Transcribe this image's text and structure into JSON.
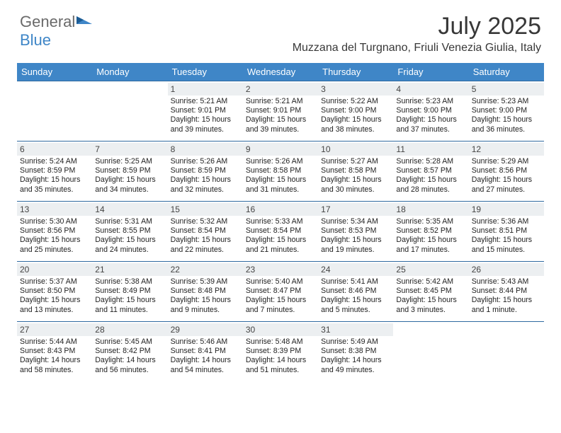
{
  "logo": {
    "line1": "General",
    "line2": "Blue"
  },
  "title": "July 2025",
  "subtitle": "Muzzana del Turgnano, Friuli Venezia Giulia, Italy",
  "colors": {
    "header_bg": "#3f86c7",
    "header_text": "#ffffff",
    "datebar_bg": "#eceff1",
    "grid_border": "#2f6aa0",
    "body_text": "#222222"
  },
  "day_names": [
    "Sunday",
    "Monday",
    "Tuesday",
    "Wednesday",
    "Thursday",
    "Friday",
    "Saturday"
  ],
  "weeks": [
    [
      null,
      null,
      {
        "d": "1",
        "sr": "5:21 AM",
        "ss": "9:01 PM",
        "dl": "15 hours and 39 minutes."
      },
      {
        "d": "2",
        "sr": "5:21 AM",
        "ss": "9:01 PM",
        "dl": "15 hours and 39 minutes."
      },
      {
        "d": "3",
        "sr": "5:22 AM",
        "ss": "9:00 PM",
        "dl": "15 hours and 38 minutes."
      },
      {
        "d": "4",
        "sr": "5:23 AM",
        "ss": "9:00 PM",
        "dl": "15 hours and 37 minutes."
      },
      {
        "d": "5",
        "sr": "5:23 AM",
        "ss": "9:00 PM",
        "dl": "15 hours and 36 minutes."
      }
    ],
    [
      {
        "d": "6",
        "sr": "5:24 AM",
        "ss": "8:59 PM",
        "dl": "15 hours and 35 minutes."
      },
      {
        "d": "7",
        "sr": "5:25 AM",
        "ss": "8:59 PM",
        "dl": "15 hours and 34 minutes."
      },
      {
        "d": "8",
        "sr": "5:26 AM",
        "ss": "8:59 PM",
        "dl": "15 hours and 32 minutes."
      },
      {
        "d": "9",
        "sr": "5:26 AM",
        "ss": "8:58 PM",
        "dl": "15 hours and 31 minutes."
      },
      {
        "d": "10",
        "sr": "5:27 AM",
        "ss": "8:58 PM",
        "dl": "15 hours and 30 minutes."
      },
      {
        "d": "11",
        "sr": "5:28 AM",
        "ss": "8:57 PM",
        "dl": "15 hours and 28 minutes."
      },
      {
        "d": "12",
        "sr": "5:29 AM",
        "ss": "8:56 PM",
        "dl": "15 hours and 27 minutes."
      }
    ],
    [
      {
        "d": "13",
        "sr": "5:30 AM",
        "ss": "8:56 PM",
        "dl": "15 hours and 25 minutes."
      },
      {
        "d": "14",
        "sr": "5:31 AM",
        "ss": "8:55 PM",
        "dl": "15 hours and 24 minutes."
      },
      {
        "d": "15",
        "sr": "5:32 AM",
        "ss": "8:54 PM",
        "dl": "15 hours and 22 minutes."
      },
      {
        "d": "16",
        "sr": "5:33 AM",
        "ss": "8:54 PM",
        "dl": "15 hours and 21 minutes."
      },
      {
        "d": "17",
        "sr": "5:34 AM",
        "ss": "8:53 PM",
        "dl": "15 hours and 19 minutes."
      },
      {
        "d": "18",
        "sr": "5:35 AM",
        "ss": "8:52 PM",
        "dl": "15 hours and 17 minutes."
      },
      {
        "d": "19",
        "sr": "5:36 AM",
        "ss": "8:51 PM",
        "dl": "15 hours and 15 minutes."
      }
    ],
    [
      {
        "d": "20",
        "sr": "5:37 AM",
        "ss": "8:50 PM",
        "dl": "15 hours and 13 minutes."
      },
      {
        "d": "21",
        "sr": "5:38 AM",
        "ss": "8:49 PM",
        "dl": "15 hours and 11 minutes."
      },
      {
        "d": "22",
        "sr": "5:39 AM",
        "ss": "8:48 PM",
        "dl": "15 hours and 9 minutes."
      },
      {
        "d": "23",
        "sr": "5:40 AM",
        "ss": "8:47 PM",
        "dl": "15 hours and 7 minutes."
      },
      {
        "d": "24",
        "sr": "5:41 AM",
        "ss": "8:46 PM",
        "dl": "15 hours and 5 minutes."
      },
      {
        "d": "25",
        "sr": "5:42 AM",
        "ss": "8:45 PM",
        "dl": "15 hours and 3 minutes."
      },
      {
        "d": "26",
        "sr": "5:43 AM",
        "ss": "8:44 PM",
        "dl": "15 hours and 1 minute."
      }
    ],
    [
      {
        "d": "27",
        "sr": "5:44 AM",
        "ss": "8:43 PM",
        "dl": "14 hours and 58 minutes."
      },
      {
        "d": "28",
        "sr": "5:45 AM",
        "ss": "8:42 PM",
        "dl": "14 hours and 56 minutes."
      },
      {
        "d": "29",
        "sr": "5:46 AM",
        "ss": "8:41 PM",
        "dl": "14 hours and 54 minutes."
      },
      {
        "d": "30",
        "sr": "5:48 AM",
        "ss": "8:39 PM",
        "dl": "14 hours and 51 minutes."
      },
      {
        "d": "31",
        "sr": "5:49 AM",
        "ss": "8:38 PM",
        "dl": "14 hours and 49 minutes."
      },
      null,
      null
    ]
  ],
  "labels": {
    "sunrise": "Sunrise: ",
    "sunset": "Sunset: ",
    "daylight": "Daylight: "
  }
}
